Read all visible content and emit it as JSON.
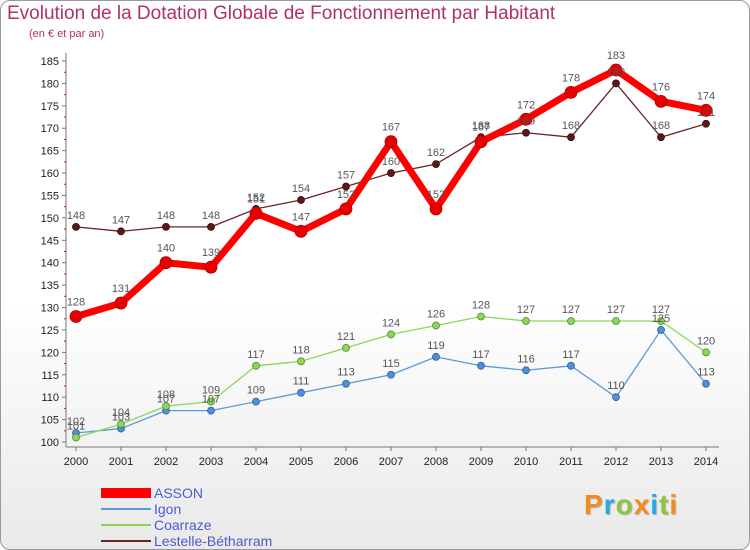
{
  "title": "Evolution de la Dotation Globale de Fonctionnement par Habitant",
  "subtitle": "(en € et par an)",
  "logo_text": "Proxiti",
  "chart_data": {
    "type": "line",
    "x": [
      2000,
      2001,
      2002,
      2003,
      2004,
      2005,
      2006,
      2007,
      2008,
      2009,
      2010,
      2011,
      2012,
      2013,
      2014
    ],
    "ylim": [
      100,
      185
    ],
    "yticks": [
      100,
      105,
      110,
      115,
      120,
      125,
      130,
      135,
      140,
      145,
      150,
      155,
      160,
      165,
      170,
      175,
      180,
      185
    ],
    "grid": "none",
    "legend_placement": "bottom-left",
    "series": [
      {
        "name": "ASSON",
        "color": "#ff0000",
        "values": [
          128,
          131,
          140,
          139,
          151,
          147,
          152,
          167,
          152,
          167,
          172,
          178,
          183,
          176,
          174
        ]
      },
      {
        "name": "Igon",
        "color": "#5b9bd5",
        "values": [
          102,
          103,
          107,
          107,
          109,
          111,
          113,
          115,
          119,
          117,
          116,
          117,
          110,
          125,
          113
        ]
      },
      {
        "name": "Coarraze",
        "color": "#8ed65a",
        "values": [
          101,
          104,
          108,
          109,
          117,
          118,
          121,
          124,
          126,
          128,
          127,
          127,
          127,
          127,
          120
        ]
      },
      {
        "name": "Lestelle-Bétharram",
        "color": "#6b2326",
        "values": [
          148,
          147,
          148,
          148,
          152,
          154,
          157,
          160,
          162,
          168,
          169,
          168,
          180,
          168,
          171
        ]
      }
    ]
  }
}
